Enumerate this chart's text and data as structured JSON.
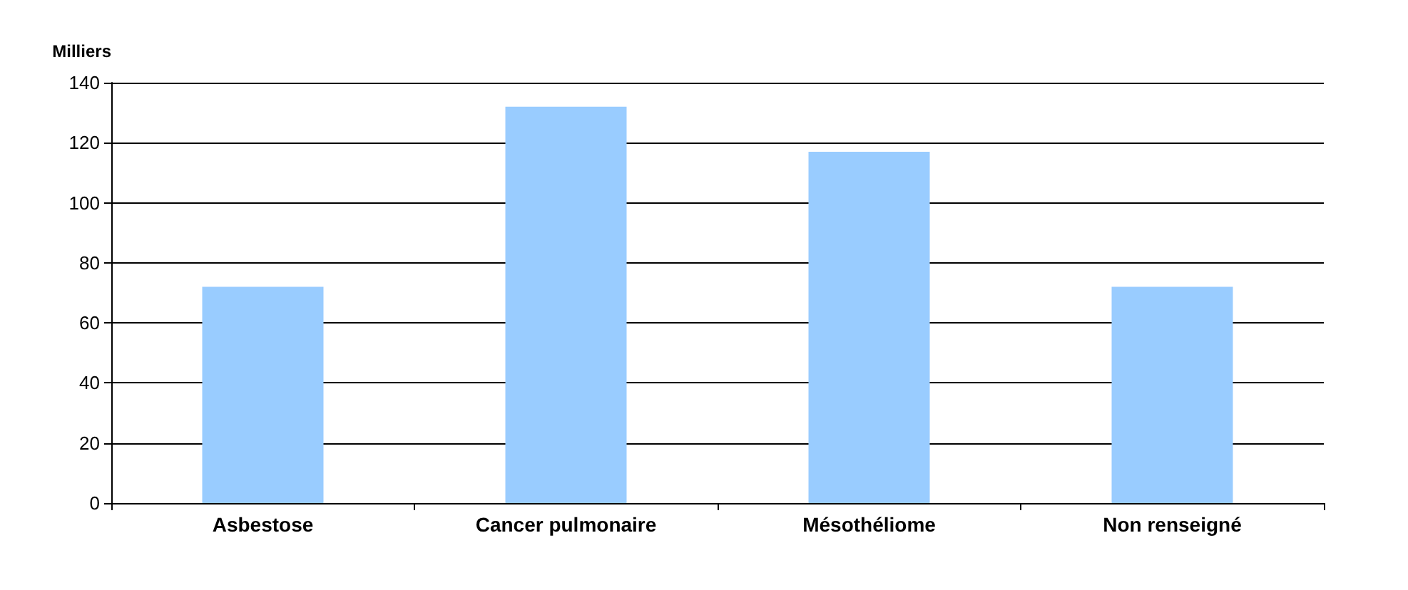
{
  "chart_data": {
    "type": "bar",
    "ylabel": "Milliers",
    "categories": [
      "Asbestose",
      "Cancer pulmonaire",
      "Mésothéliome",
      "Non renseigné"
    ],
    "values": [
      72,
      132,
      117,
      72
    ],
    "color": "#99ccff",
    "ylim": [
      0,
      140
    ],
    "yticks": [
      0,
      20,
      40,
      60,
      80,
      100,
      120,
      140
    ],
    "grid": "y"
  }
}
